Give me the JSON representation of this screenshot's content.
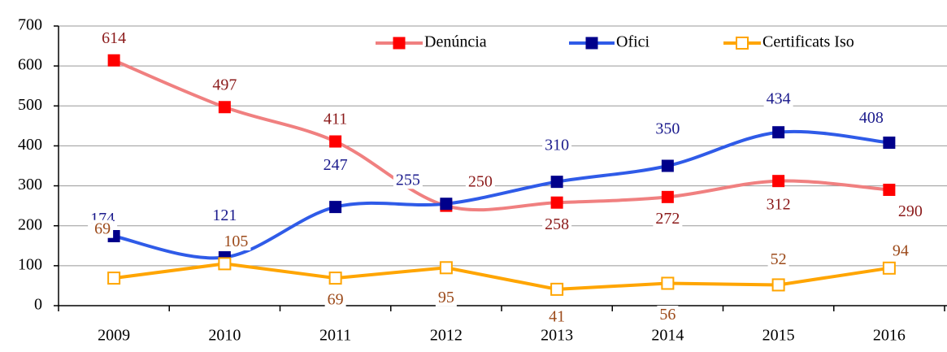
{
  "chart_data": {
    "type": "line",
    "categories": [
      "2009",
      "2010",
      "2011",
      "2012",
      "2013",
      "2014",
      "2015",
      "2016"
    ],
    "series": [
      {
        "name": "Denúncia",
        "color": "#f08080",
        "marker_color": "#ff0000",
        "label_color": "#8b1a1a",
        "marker": "filled-square",
        "smooth": true,
        "values": [
          614,
          497,
          411,
          250,
          258,
          272,
          312,
          290
        ]
      },
      {
        "name": "Ofici",
        "color": "#2f5be8",
        "marker_color": "#00008b",
        "label_color": "#1a1a8c",
        "marker": "filled-square",
        "smooth": true,
        "values": [
          174,
          121,
          247,
          255,
          310,
          350,
          434,
          408
        ]
      },
      {
        "name": "Certificats Iso",
        "color": "#ffa500",
        "marker_color": "#ffa500",
        "label_color": "#9c4a1a",
        "marker": "open-square",
        "smooth": false,
        "values": [
          69,
          105,
          69,
          95,
          41,
          56,
          52,
          94
        ]
      }
    ],
    "ylim": [
      0,
      700
    ],
    "yticks": [
      0,
      100,
      200,
      300,
      400,
      500,
      600,
      700
    ],
    "grid": true,
    "legend": "top"
  }
}
